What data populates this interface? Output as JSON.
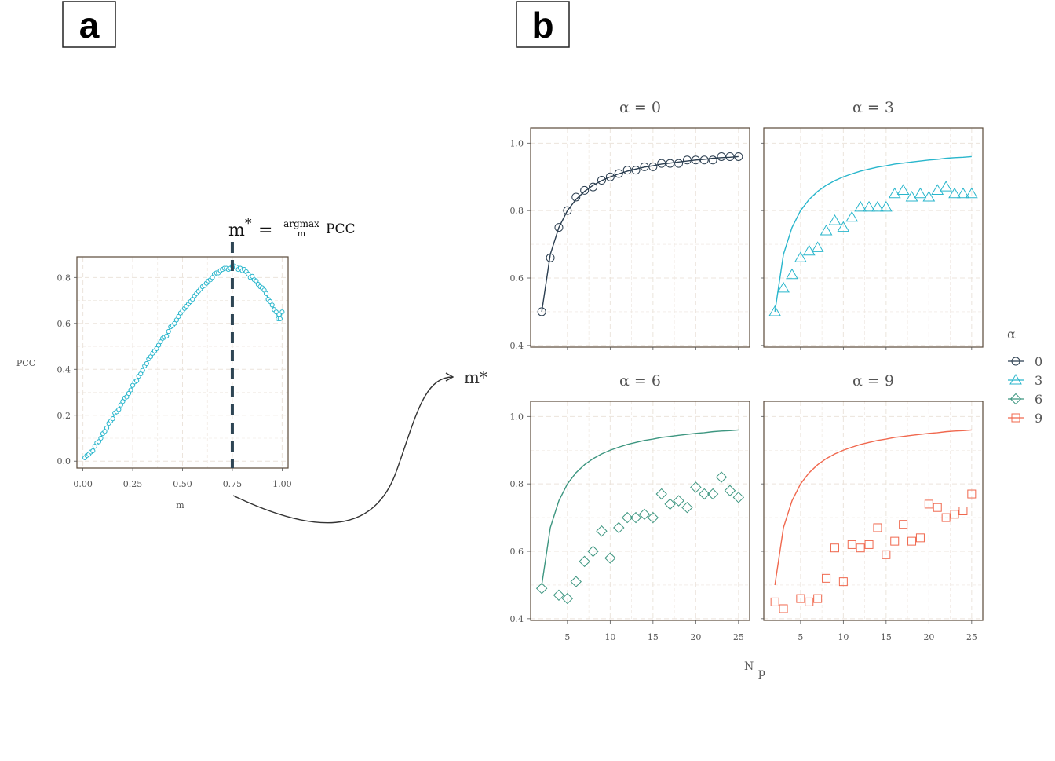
{
  "labels": {
    "panel_a": "a",
    "panel_b": "b"
  },
  "annotation": {
    "m_star": "m",
    "star": "*",
    "equals": "=",
    "argmax": "argmax",
    "argmax_sub": "m",
    "pcc": "PCC",
    "arrow_target": "m*"
  },
  "colors": {
    "0": "#2b3e50",
    "3": "#29b6cc",
    "6": "#3d9680",
    "9": "#f0684e",
    "frame": "#5a4a3a",
    "grid": "#ece4dc"
  },
  "chart_data": [
    {
      "id": "panel-a",
      "type": "line",
      "xlabel": "m",
      "ylabel": "PCC",
      "xlim": [
        -0.03,
        1.03
      ],
      "ylim": [
        -0.03,
        0.89
      ],
      "xticks": [
        "0.00",
        "0.25",
        "0.50",
        "0.75",
        "1.00"
      ],
      "yticks": [
        "0.0",
        "0.2",
        "0.4",
        "0.6",
        "0.8"
      ],
      "marker": "circle",
      "vline_x": 0.75,
      "x": [
        0.01,
        0.02,
        0.03,
        0.04,
        0.05,
        0.06,
        0.07,
        0.08,
        0.09,
        0.1,
        0.11,
        0.12,
        0.13,
        0.14,
        0.15,
        0.16,
        0.17,
        0.18,
        0.19,
        0.2,
        0.21,
        0.22,
        0.23,
        0.24,
        0.25,
        0.26,
        0.27,
        0.28,
        0.29,
        0.3,
        0.31,
        0.32,
        0.33,
        0.34,
        0.35,
        0.36,
        0.37,
        0.38,
        0.39,
        0.4,
        0.41,
        0.42,
        0.43,
        0.44,
        0.45,
        0.46,
        0.47,
        0.48,
        0.49,
        0.5,
        0.51,
        0.52,
        0.53,
        0.54,
        0.55,
        0.56,
        0.57,
        0.58,
        0.59,
        0.6,
        0.61,
        0.62,
        0.63,
        0.64,
        0.65,
        0.66,
        0.67,
        0.68,
        0.69,
        0.7,
        0.71,
        0.72,
        0.73,
        0.74,
        0.75,
        0.76,
        0.77,
        0.78,
        0.79,
        0.8,
        0.81,
        0.82,
        0.83,
        0.84,
        0.85,
        0.86,
        0.87,
        0.88,
        0.89,
        0.9,
        0.91,
        0.92,
        0.93,
        0.94,
        0.95,
        0.96,
        0.97,
        0.98,
        0.99,
        1.0
      ],
      "y": [
        0.015,
        0.025,
        0.03,
        0.04,
        0.045,
        0.065,
        0.08,
        0.085,
        0.1,
        0.12,
        0.13,
        0.145,
        0.165,
        0.175,
        0.185,
        0.21,
        0.215,
        0.225,
        0.245,
        0.26,
        0.275,
        0.28,
        0.295,
        0.31,
        0.33,
        0.345,
        0.35,
        0.37,
        0.38,
        0.395,
        0.415,
        0.425,
        0.445,
        0.455,
        0.47,
        0.48,
        0.49,
        0.505,
        0.52,
        0.535,
        0.54,
        0.545,
        0.565,
        0.585,
        0.59,
        0.6,
        0.615,
        0.63,
        0.645,
        0.655,
        0.665,
        0.675,
        0.685,
        0.695,
        0.705,
        0.72,
        0.73,
        0.74,
        0.75,
        0.76,
        0.765,
        0.775,
        0.785,
        0.79,
        0.8,
        0.815,
        0.82,
        0.82,
        0.83,
        0.835,
        0.84,
        0.84,
        0.835,
        0.84,
        0.85,
        0.85,
        0.845,
        0.835,
        0.84,
        0.83,
        0.835,
        0.825,
        0.815,
        0.8,
        0.805,
        0.79,
        0.785,
        0.77,
        0.76,
        0.755,
        0.745,
        0.73,
        0.705,
        0.695,
        0.68,
        0.66,
        0.65,
        0.62,
        0.62,
        0.65
      ]
    },
    {
      "id": "panel-b",
      "type": "scatter",
      "xlabel": "N",
      "xlabel_sub": "p",
      "legend_title": "α",
      "legend_entries": [
        "0",
        "3",
        "6",
        "9"
      ],
      "xlim": [
        0.7,
        26.3
      ],
      "ylim": [
        0.395,
        1.045
      ],
      "xticks": [
        "5",
        "10",
        "15",
        "20",
        "25"
      ],
      "yticks": [
        "0.4",
        "0.6",
        "0.8",
        "1.0"
      ],
      "reference_curve": {
        "x": [
          2,
          3,
          4,
          5,
          6,
          7,
          8,
          9,
          10,
          11,
          12,
          13,
          14,
          15,
          16,
          17,
          18,
          19,
          20,
          21,
          22,
          23,
          24,
          25
        ],
        "y": [
          0.5,
          0.67,
          0.75,
          0.8,
          0.833,
          0.857,
          0.875,
          0.889,
          0.9,
          0.909,
          0.917,
          0.923,
          0.929,
          0.933,
          0.938,
          0.941,
          0.944,
          0.947,
          0.95,
          0.952,
          0.955,
          0.957,
          0.958,
          0.96
        ]
      },
      "facets": [
        {
          "title": "α = 0",
          "key": "0",
          "marker": "circle",
          "x": [
            2,
            3,
            4,
            5,
            6,
            7,
            8,
            9,
            10,
            11,
            12,
            13,
            14,
            15,
            16,
            17,
            18,
            19,
            20,
            21,
            22,
            23,
            24,
            25
          ],
          "y": [
            0.5,
            0.66,
            0.75,
            0.8,
            0.84,
            0.86,
            0.87,
            0.89,
            0.9,
            0.91,
            0.92,
            0.92,
            0.93,
            0.93,
            0.94,
            0.94,
            0.94,
            0.95,
            0.95,
            0.95,
            0.95,
            0.96,
            0.96,
            0.96
          ]
        },
        {
          "title": "α = 3",
          "key": "3",
          "marker": "triangle",
          "x": [
            2,
            3,
            4,
            5,
            6,
            7,
            8,
            9,
            10,
            11,
            12,
            13,
            14,
            15,
            16,
            17,
            18,
            19,
            20,
            21,
            22,
            23,
            24,
            25
          ],
          "y": [
            0.5,
            0.57,
            0.61,
            0.66,
            0.68,
            0.69,
            0.74,
            0.77,
            0.75,
            0.78,
            0.81,
            0.81,
            0.81,
            0.81,
            0.85,
            0.86,
            0.84,
            0.85,
            0.84,
            0.86,
            0.87,
            0.85,
            0.85,
            0.85
          ]
        },
        {
          "title": "α = 6",
          "key": "6",
          "marker": "diamond",
          "x": [
            2,
            4,
            5,
            6,
            7,
            8,
            9,
            10,
            11,
            12,
            13,
            14,
            15,
            16,
            17,
            18,
            19,
            20,
            21,
            22,
            23,
            24,
            25
          ],
          "y": [
            0.49,
            0.47,
            0.46,
            0.51,
            0.57,
            0.6,
            0.66,
            0.58,
            0.67,
            0.7,
            0.7,
            0.71,
            0.7,
            0.77,
            0.74,
            0.75,
            0.73,
            0.79,
            0.77,
            0.77,
            0.82,
            0.78,
            0.76
          ]
        },
        {
          "title": "α = 9",
          "key": "9",
          "marker": "square",
          "x": [
            2,
            3,
            5,
            6,
            7,
            8,
            9,
            10,
            11,
            12,
            13,
            14,
            15,
            16,
            17,
            18,
            19,
            20,
            21,
            22,
            23,
            24,
            25
          ],
          "y": [
            0.45,
            0.43,
            0.46,
            0.45,
            0.46,
            0.52,
            0.61,
            0.51,
            0.62,
            0.61,
            0.62,
            0.67,
            0.59,
            0.63,
            0.68,
            0.63,
            0.64,
            0.74,
            0.73,
            0.7,
            0.71,
            0.72,
            0.77
          ]
        }
      ]
    }
  ]
}
